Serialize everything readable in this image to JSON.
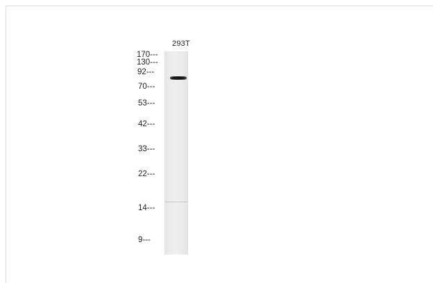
{
  "lane_label": "293T",
  "markers": [
    "170---",
    "130---",
    "92---",
    "70---",
    "53---",
    "42---",
    "33---",
    "22---",
    "14---",
    "9---"
  ]
}
